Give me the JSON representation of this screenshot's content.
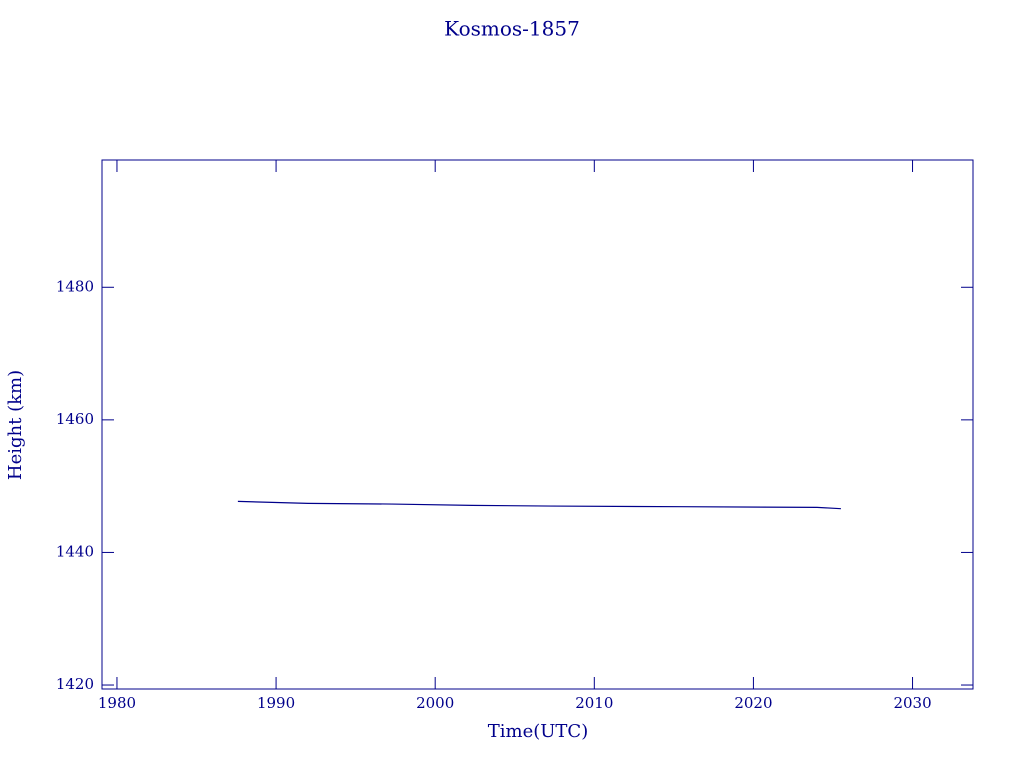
{
  "chart_data": {
    "type": "line",
    "title": "Kosmos-1857",
    "xlabel": "Time(UTC)",
    "ylabel": "Height (km)",
    "x": [
      1987.6,
      1992,
      1997.3,
      2002.3,
      2007.3,
      2015.5,
      2024,
      2025.5
    ],
    "series": [
      {
        "color": "#00008b",
        "values": [
          1447.7,
          1447.4,
          1447.3,
          1447.1,
          1447.0,
          1446.9,
          1446.8,
          1446.6
        ]
      }
    ],
    "xlim": [
      1979.06,
      2033.8
    ],
    "xticks": [
      1980,
      1990,
      2000,
      2010,
      2020,
      2030
    ],
    "ylim": [
      1419.4,
      1499.2
    ],
    "yticks": [
      1420,
      1440,
      1460,
      1480
    ],
    "axis_color": "#00008b",
    "text_color": "#00008b"
  }
}
